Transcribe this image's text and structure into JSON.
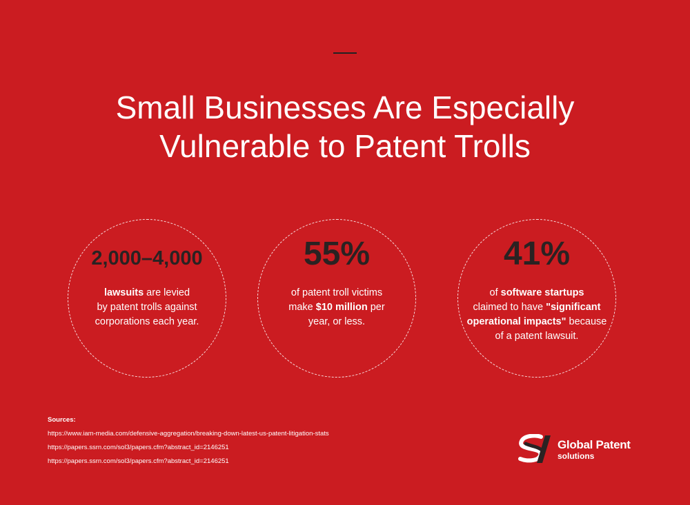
{
  "title": {
    "line1": "Small Businesses Are Especially",
    "line2": "Vulnerable to Patent Trolls"
  },
  "stats": [
    {
      "number": "2,000–4,000",
      "desc_bold_1": "lawsuits",
      "desc_1": " are levied",
      "desc_2": "by patent trolls against",
      "desc_3": "corporations each year."
    },
    {
      "number": "55%",
      "desc_1": "of patent troll victims",
      "desc_2_pre": "make ",
      "desc_bold_1": "$10 million",
      "desc_2_post": " per",
      "desc_3": "year, or less."
    },
    {
      "number": "41%",
      "desc_1_pre": "of ",
      "desc_bold_1": "software startups",
      "desc_2_pre": "claimed to have ",
      "desc_bold_2": "\"significant",
      "desc_bold_3": "operational impacts\"",
      "desc_3_post": " because",
      "desc_4": "of a patent lawsuit."
    }
  ],
  "sources": {
    "label": "Sources:",
    "links": [
      "https://www.iam-media.com/defensive-aggregation/breaking-down-latest-us-patent-litigation-stats",
      "https://papers.ssrn.com/sol3/papers.cfm?abstract_id=2146251",
      "https://papers.ssrn.com/sol3/papers.cfm?abstract_id=2146251"
    ]
  },
  "logo": {
    "name": "Global Patent",
    "sub": "solutions",
    "icon": "gps-swoosh-logo-icon"
  },
  "colors": {
    "background": "#cb1c21",
    "number": "#2a2222",
    "text": "#ffffff"
  }
}
